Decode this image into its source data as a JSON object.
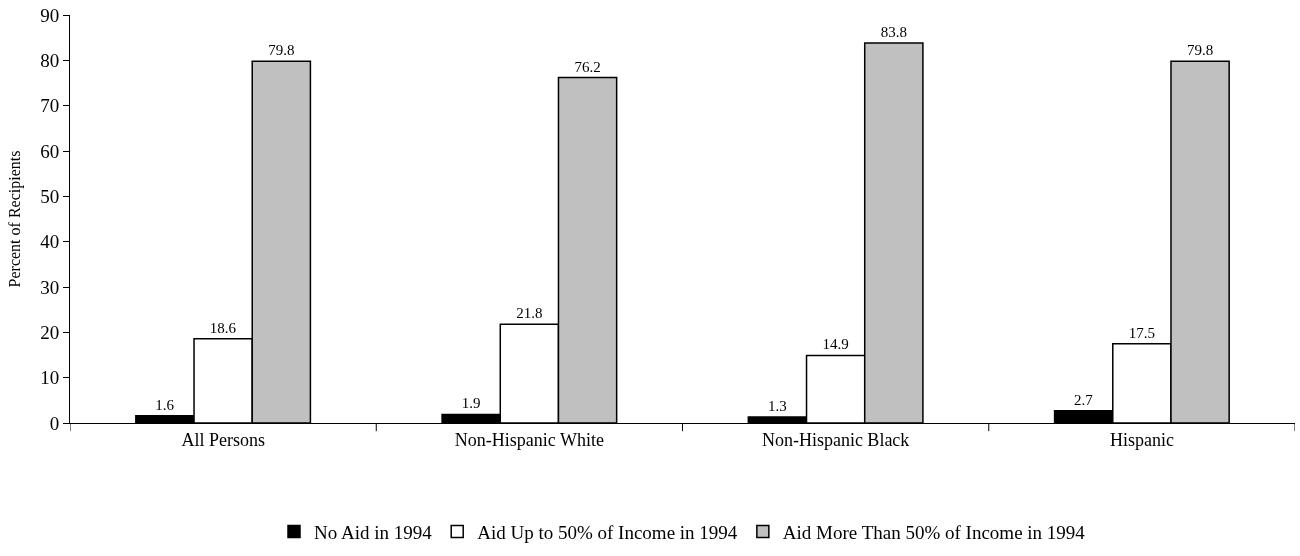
{
  "chart_data": {
    "type": "bar",
    "ylabel": "Percent of Recipients",
    "categories": [
      "All Persons",
      "Non-Hispanic White",
      "Non-Hispanic Black",
      "Hispanic"
    ],
    "series": [
      {
        "name": "No Aid in 1994",
        "color": "#000000",
        "values": [
          1.6,
          1.9,
          1.3,
          2.7
        ]
      },
      {
        "name": "Aid Up to 50% of Income in 1994",
        "color": "#ffffff",
        "values": [
          18.6,
          21.8,
          14.9,
          17.5
        ]
      },
      {
        "name": "Aid More Than 50% of Income in 1994",
        "color": "#c0c0c0",
        "values": [
          79.8,
          76.2,
          83.8,
          79.8
        ]
      }
    ],
    "ylim": [
      0,
      90
    ],
    "yticks": [
      0,
      10,
      20,
      30,
      40,
      50,
      60,
      70,
      80,
      90
    ],
    "data_labels": true,
    "grid": false,
    "legend": "bottom"
  }
}
